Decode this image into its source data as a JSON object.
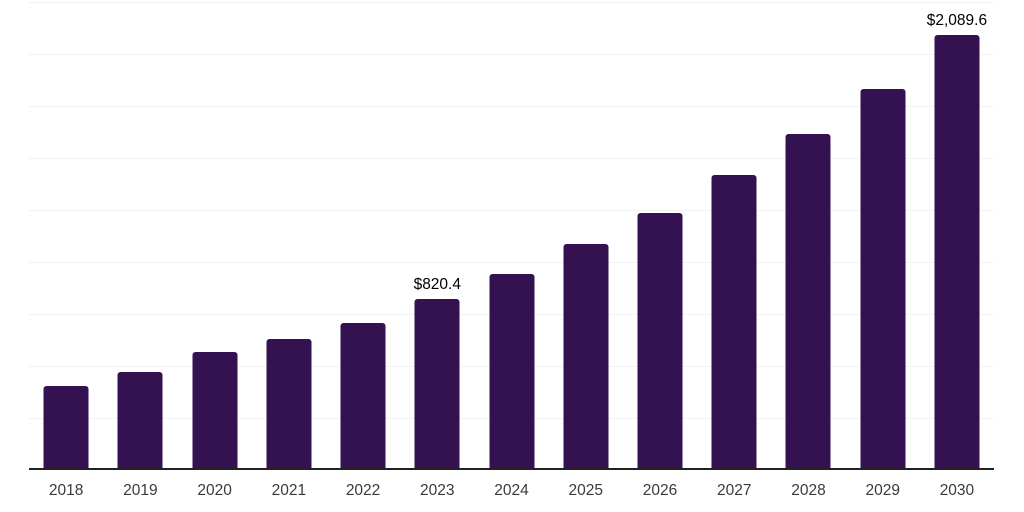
{
  "chart_data": {
    "type": "bar",
    "title": "",
    "xlabel": "",
    "ylabel": "",
    "categories": [
      "2018",
      "2019",
      "2020",
      "2021",
      "2022",
      "2023",
      "2024",
      "2025",
      "2026",
      "2027",
      "2028",
      "2029",
      "2030"
    ],
    "values": [
      405,
      470,
      565,
      630,
      705,
      820.4,
      940,
      1085,
      1235,
      1420,
      1615,
      1830,
      2089.6
    ],
    "data_labels": [
      "",
      "",
      "",
      "",
      "",
      "$820.4",
      "",
      "",
      "",
      "",
      "",
      "",
      "$2,089.6"
    ],
    "ylim": [
      0,
      2250
    ],
    "gridline_step": 250,
    "grid": "horizontal-only",
    "legend": "none",
    "colors": {
      "bar": "#341251",
      "axis": "#222222",
      "gridline": "#f2f2f2",
      "tick_label": "#3a3a3a",
      "data_label": "#000000",
      "background": "#ffffff"
    }
  }
}
